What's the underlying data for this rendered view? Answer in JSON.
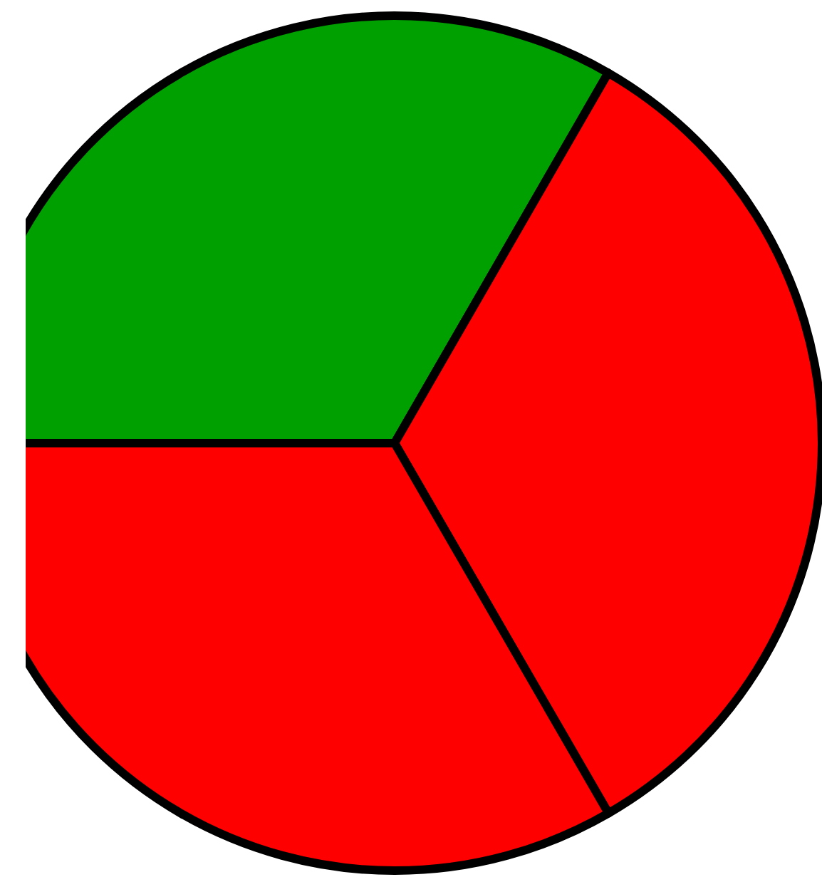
{
  "chart_data": {
    "type": "pie",
    "categories": [
      null,
      null,
      null
    ],
    "values": [
      33.33,
      33.33,
      33.34
    ],
    "colors": [
      "#00a000",
      "#ff0000",
      "#ff0000"
    ]
  }
}
